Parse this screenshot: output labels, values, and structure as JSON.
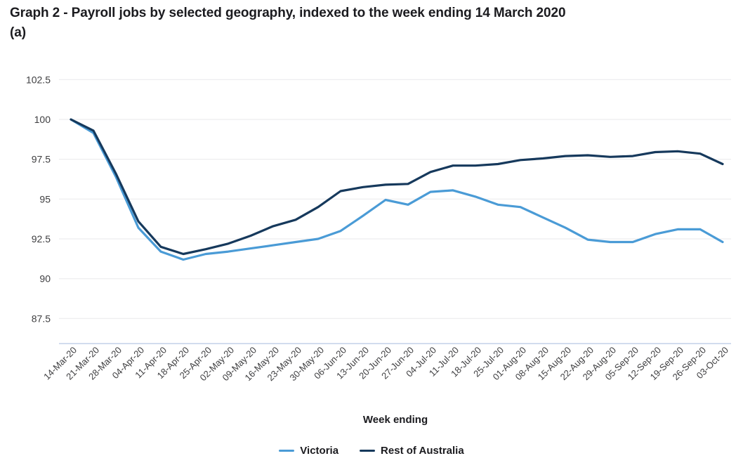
{
  "title": {
    "line1": "Graph 2 - Payroll jobs by selected geography, indexed to the week ending 14 March 2020",
    "line2": "(a)"
  },
  "chart_data": {
    "type": "line",
    "title": "Graph 2 - Payroll jobs by selected geography, indexed to the week ending 14 March 2020 (a)",
    "xlabel": "Week ending",
    "ylabel": "",
    "grid": true,
    "legend_position": "bottom",
    "yticks": [
      87.5,
      90,
      92.5,
      95,
      97.5,
      100,
      102.5
    ],
    "ylim": [
      86.2,
      102.9
    ],
    "categories": [
      "14-Mar-20",
      "21-Mar-20",
      "28-Mar-20",
      "04-Apr-20",
      "11-Apr-20",
      "18-Apr-20",
      "25-Apr-20",
      "02-May-20",
      "09-May-20",
      "16-May-20",
      "23-May-20",
      "30-May-20",
      "06-Jun-20",
      "13-Jun-20",
      "20-Jun-20",
      "27-Jun-20",
      "04-Jul-20",
      "11-Jul-20",
      "18-Jul-20",
      "25-Jul-20",
      "01-Aug-20",
      "08-Aug-20",
      "15-Aug-20",
      "22-Aug-20",
      "29-Aug-20",
      "05-Sep-20",
      "12-Sep-20",
      "19-Sep-20",
      "26-Sep-20",
      "03-Oct-20"
    ],
    "series": [
      {
        "name": "Victoria",
        "color": "#4a9bd6",
        "values": [
          100,
          99.15,
          96.4,
          93.2,
          91.7,
          91.2,
          91.55,
          91.7,
          91.9,
          92.1,
          92.3,
          92.5,
          93.0,
          93.95,
          94.95,
          94.65,
          95.45,
          95.55,
          95.15,
          94.65,
          94.5,
          93.85,
          93.2,
          92.45,
          92.3,
          92.3,
          92.8,
          93.1,
          93.1,
          92.3
        ]
      },
      {
        "name": "Rest of Australia",
        "color": "#16395c",
        "values": [
          100,
          99.3,
          96.6,
          93.6,
          92.0,
          91.55,
          91.85,
          92.2,
          92.7,
          93.3,
          93.7,
          94.5,
          95.5,
          95.75,
          95.9,
          95.95,
          96.7,
          97.1,
          97.1,
          97.2,
          97.45,
          97.55,
          97.7,
          97.75,
          97.65,
          97.7,
          97.95,
          98.0,
          97.85,
          97.2
        ]
      }
    ]
  },
  "colors": {
    "grid": "#e9e9eb",
    "axis_line": "#c4d0e8",
    "tick_label": "#3e3e40",
    "title_text": "#1b1b1f",
    "background": "#ffffff"
  }
}
